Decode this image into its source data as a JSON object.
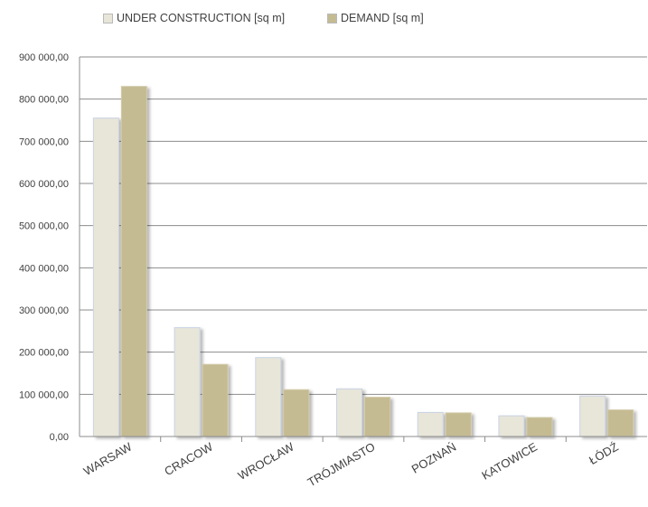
{
  "chart_data": {
    "type": "bar",
    "categories": [
      "WARSAW",
      "CRACOW",
      "WROCŁAW",
      "TRÓJMIASTO",
      "POZNAŃ",
      "KATOWICE",
      "ŁÓDŹ"
    ],
    "series": [
      {
        "name": "UNDER CONSTRUCTION [sq m]",
        "values": [
          755000,
          258000,
          187000,
          113000,
          57000,
          49000,
          96000
        ],
        "color": "#e8e6d9"
      },
      {
        "name": "DEMAND [sq m]",
        "values": [
          830000,
          171000,
          111000,
          93000,
          56000,
          45000,
          63000
        ],
        "color": "#c4bb93"
      }
    ],
    "yticks": [
      "0,00",
      "100 000,00",
      "200 000,00",
      "300 000,00",
      "400 000,00",
      "500 000,00",
      "600 000,00",
      "700 000,00",
      "800 000,00",
      "900 000,00"
    ],
    "ylim": [
      0,
      900000
    ],
    "grid": true,
    "legend_position": "top"
  }
}
